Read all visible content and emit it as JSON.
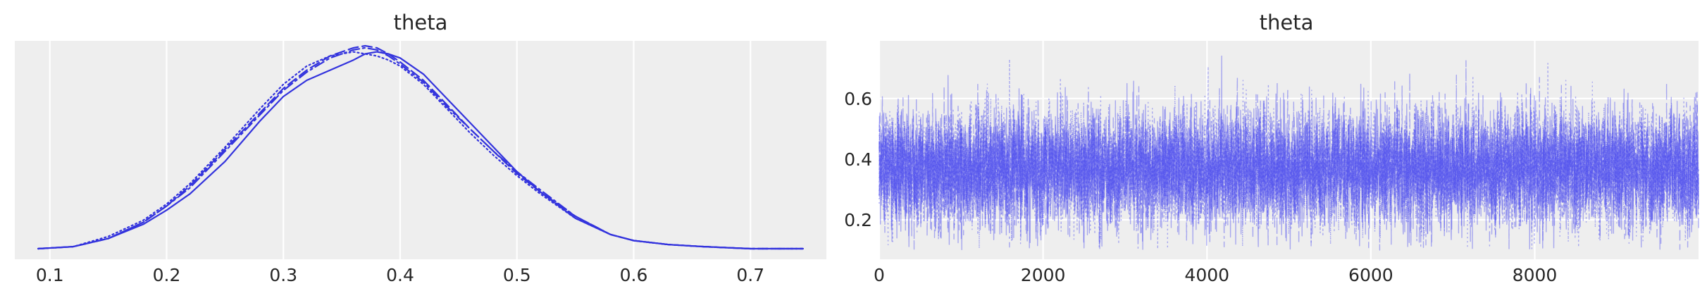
{
  "colors": {
    "series": "#3333dd",
    "trace": "#4444ee",
    "panel_background": "#eeeeee",
    "grid": "#ffffff",
    "text": "#262626"
  },
  "chart_data": [
    {
      "type": "line",
      "title": "theta",
      "xlabel": "",
      "ylabel": "",
      "xlim": [
        0.07,
        0.765
      ],
      "ylim": [
        0,
        1
      ],
      "x_ticks": [
        0.1,
        0.2,
        0.3,
        0.4,
        0.5,
        0.6,
        0.7
      ],
      "x_tick_labels": [
        "0.1",
        "0.2",
        "0.3",
        "0.4",
        "0.5",
        "0.6",
        "0.7"
      ],
      "y_ticks": [],
      "grid": "vertical",
      "legend": "none",
      "series": [
        {
          "linestyle": "solid",
          "x": [
            0.09,
            0.12,
            0.15,
            0.18,
            0.2,
            0.22,
            0.25,
            0.28,
            0.3,
            0.32,
            0.34,
            0.36,
            0.37,
            0.38,
            0.39,
            0.4,
            0.42,
            0.44,
            0.46,
            0.48,
            0.5,
            0.52,
            0.55,
            0.58,
            0.6,
            0.63,
            0.66,
            0.7,
            0.745
          ],
          "y": [
            0.0,
            0.01,
            0.05,
            0.12,
            0.19,
            0.27,
            0.43,
            0.63,
            0.75,
            0.83,
            0.88,
            0.93,
            0.96,
            0.97,
            0.96,
            0.94,
            0.86,
            0.74,
            0.62,
            0.5,
            0.38,
            0.28,
            0.15,
            0.07,
            0.04,
            0.02,
            0.01,
            0.0,
            0.0
          ]
        },
        {
          "linestyle": "dashed",
          "x": [
            0.09,
            0.12,
            0.15,
            0.18,
            0.2,
            0.22,
            0.25,
            0.28,
            0.3,
            0.32,
            0.34,
            0.36,
            0.37,
            0.38,
            0.39,
            0.4,
            0.42,
            0.44,
            0.46,
            0.48,
            0.5,
            0.52,
            0.55,
            0.58,
            0.6,
            0.63,
            0.66,
            0.7,
            0.745
          ],
          "y": [
            0.0,
            0.01,
            0.05,
            0.13,
            0.21,
            0.31,
            0.49,
            0.67,
            0.79,
            0.88,
            0.95,
            0.99,
            1.0,
            0.99,
            0.96,
            0.92,
            0.83,
            0.71,
            0.59,
            0.48,
            0.37,
            0.28,
            0.16,
            0.07,
            0.04,
            0.02,
            0.01,
            0.0,
            0.0
          ]
        },
        {
          "linestyle": "dashdot",
          "x": [
            0.09,
            0.12,
            0.15,
            0.18,
            0.2,
            0.22,
            0.25,
            0.28,
            0.3,
            0.32,
            0.34,
            0.36,
            0.37,
            0.38,
            0.39,
            0.4,
            0.42,
            0.44,
            0.46,
            0.48,
            0.5,
            0.52,
            0.55,
            0.58,
            0.6,
            0.63,
            0.66,
            0.7,
            0.745
          ],
          "y": [
            0.0,
            0.01,
            0.05,
            0.13,
            0.21,
            0.3,
            0.48,
            0.66,
            0.78,
            0.87,
            0.94,
            0.98,
            0.99,
            0.98,
            0.95,
            0.91,
            0.82,
            0.7,
            0.59,
            0.48,
            0.38,
            0.29,
            0.16,
            0.07,
            0.04,
            0.02,
            0.01,
            0.0,
            0.0
          ]
        },
        {
          "linestyle": "dotted",
          "x": [
            0.09,
            0.12,
            0.15,
            0.18,
            0.2,
            0.22,
            0.25,
            0.28,
            0.3,
            0.32,
            0.34,
            0.36,
            0.37,
            0.38,
            0.39,
            0.4,
            0.42,
            0.44,
            0.46,
            0.48,
            0.5,
            0.52,
            0.55,
            0.58,
            0.6,
            0.63,
            0.66,
            0.7,
            0.745
          ],
          "y": [
            0.0,
            0.01,
            0.06,
            0.14,
            0.22,
            0.32,
            0.5,
            0.69,
            0.81,
            0.9,
            0.95,
            0.97,
            0.96,
            0.95,
            0.93,
            0.9,
            0.81,
            0.69,
            0.57,
            0.46,
            0.36,
            0.27,
            0.15,
            0.07,
            0.04,
            0.02,
            0.01,
            0.0,
            0.0
          ]
        }
      ]
    },
    {
      "type": "line",
      "title": "theta",
      "xlabel": "",
      "ylabel": "",
      "xlim": [
        0,
        9999
      ],
      "ylim": [
        0.07,
        0.79
      ],
      "x_ticks": [
        0,
        2000,
        4000,
        6000,
        8000
      ],
      "x_tick_labels": [
        "0",
        "2000",
        "4000",
        "6000",
        "8000"
      ],
      "y_ticks": [
        0.2,
        0.4,
        0.6
      ],
      "y_tick_labels": [
        "0.2",
        "0.4",
        "0.6"
      ],
      "grid": "both",
      "legend": "none",
      "n_draws": 10000,
      "n_chains": 4,
      "center": 0.37,
      "spread": 0.095,
      "min": 0.1,
      "max": 0.75,
      "chain_linestyles": [
        "solid",
        "dashed",
        "dashdot",
        "dotted"
      ]
    }
  ]
}
